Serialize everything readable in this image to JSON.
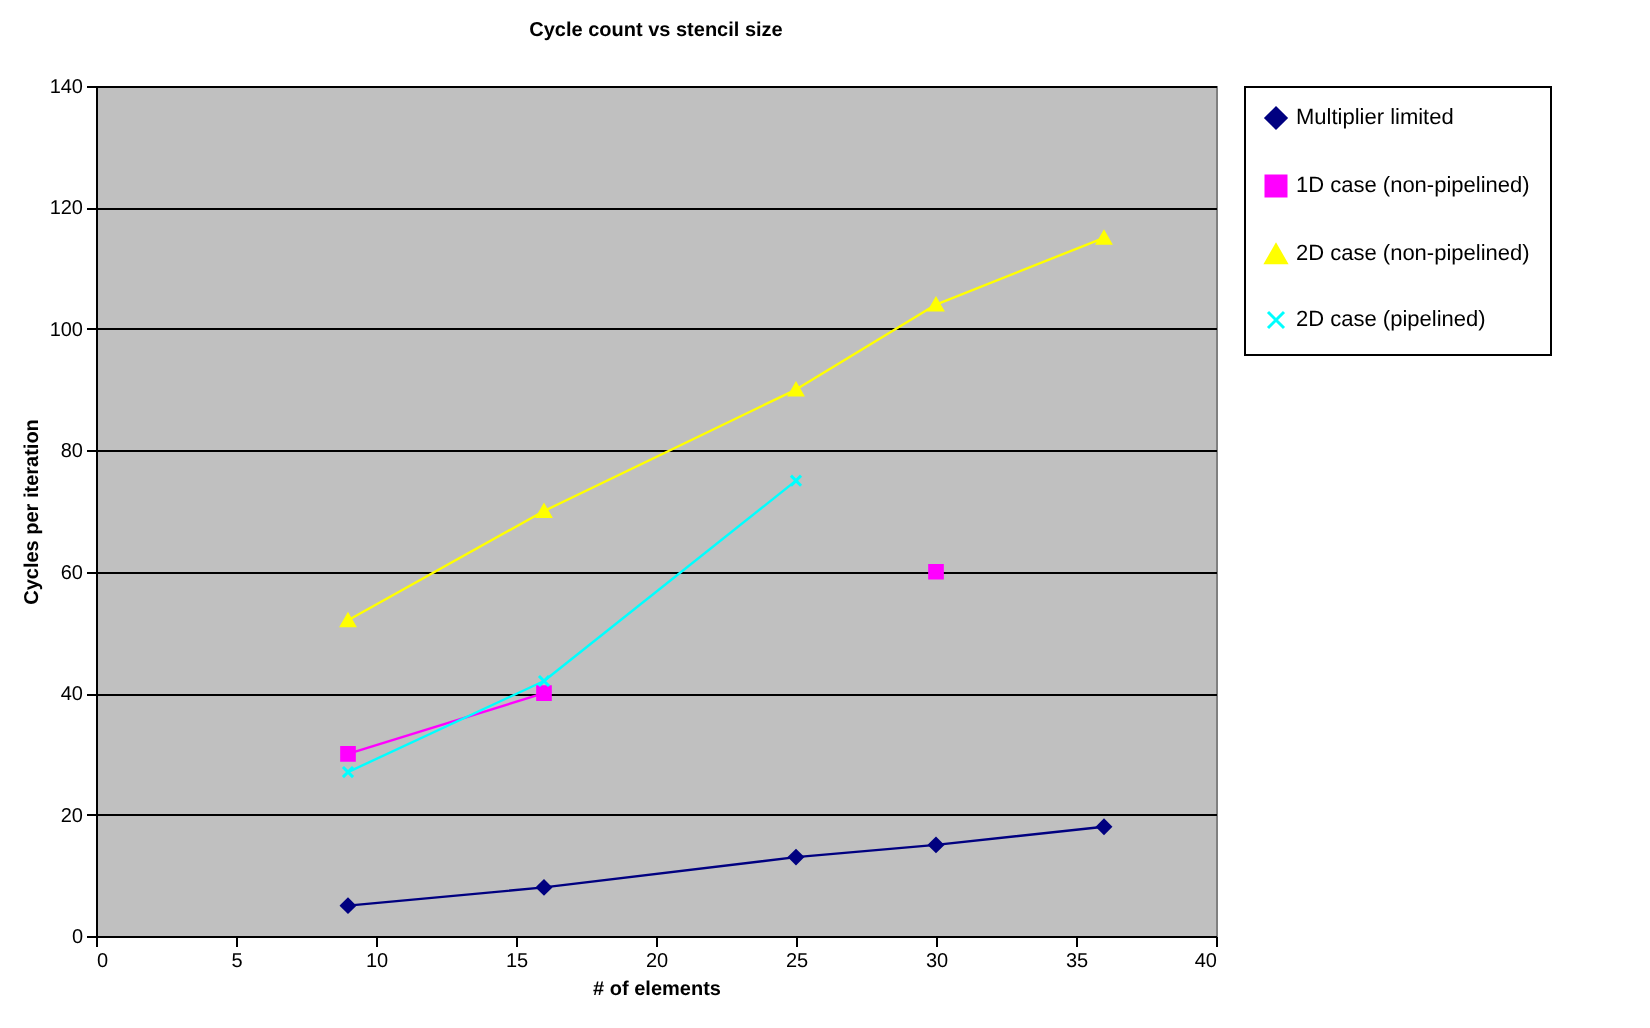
{
  "chart_data": {
    "type": "line",
    "title": "Cycle count vs stencil size",
    "xlabel": "# of elements",
    "ylabel": "Cycles per iteration",
    "x": [
      9,
      16,
      25,
      30,
      36
    ],
    "series": [
      {
        "name": "Multiplier limited",
        "color": "#000080",
        "marker": "diamond",
        "values": [
          5,
          8,
          13,
          15,
          18
        ]
      },
      {
        "name": "1D case (non-pipelined)",
        "color": "#ff00ff",
        "marker": "square",
        "values": [
          30,
          40,
          null,
          60,
          null
        ]
      },
      {
        "name": "2D case (non-pipelined)",
        "color": "#ffff00",
        "marker": "triangle",
        "values": [
          52,
          70,
          90,
          104,
          115
        ]
      },
      {
        "name": "2D case (pipelined)",
        "color": "#00ffff",
        "marker": "cross",
        "values": [
          27,
          42,
          75,
          null,
          null
        ]
      }
    ],
    "xlim": [
      0,
      40
    ],
    "xticks": [
      0,
      5,
      10,
      15,
      20,
      25,
      30,
      35,
      40
    ],
    "ylim": [
      0,
      140
    ],
    "yticks": [
      0,
      20,
      40,
      60,
      80,
      100,
      120,
      140
    ],
    "grid": "y",
    "legend": "right",
    "line_style": "solid"
  }
}
